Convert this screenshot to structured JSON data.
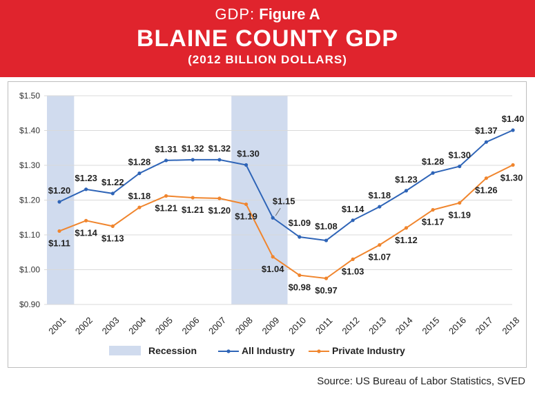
{
  "header": {
    "prefix": "GDP:",
    "figure": "Figure A",
    "title": "BLAINE COUNTY GDP",
    "subtitle": "(2012 BILLION DOLLARS)"
  },
  "source": "Source: US Bureau of Labor Statistics, SVED",
  "chart_data": {
    "type": "line",
    "title": "BLAINE COUNTY GDP",
    "subtitle": "(2012 BILLION DOLLARS)",
    "xlabel": "",
    "ylabel": "",
    "x": [
      "2001",
      "2002",
      "2003",
      "2004",
      "2005",
      "2006",
      "2007",
      "2008",
      "2009",
      "2010",
      "2011",
      "2012",
      "2013",
      "2014",
      "2015",
      "2016",
      "2017",
      "2018"
    ],
    "ylim": [
      0.9,
      1.5
    ],
    "yticks": [
      0.9,
      1.0,
      1.1,
      1.2,
      1.3,
      1.4,
      1.5
    ],
    "ytick_labels": [
      "$0.90",
      "$1.00",
      "$1.10",
      "$1.20",
      "$1.30",
      "$1.40",
      "$1.50"
    ],
    "grid": true,
    "legend_position": "bottom",
    "shaded_regions": [
      {
        "name": "Recession",
        "start": "2001",
        "end": "2001",
        "color": "#d0dbee"
      },
      {
        "name": "Recession",
        "start": "2008",
        "end": "2009",
        "color": "#d0dbee"
      }
    ],
    "legend": [
      "Recession",
      "All Industry",
      "Private Industry"
    ],
    "series": [
      {
        "name": "All Industry",
        "color": "#2e64b7",
        "values": [
          1.195,
          1.231,
          1.219,
          1.277,
          1.314,
          1.316,
          1.316,
          1.301,
          1.149,
          1.094,
          1.084,
          1.142,
          1.181,
          1.227,
          1.278,
          1.297,
          1.367,
          1.401
        ],
        "labels": [
          "$1.20",
          "$1.23",
          "$1.22",
          "$1.28",
          "$1.31",
          "$1.32",
          "$1.32",
          "$1.30",
          "$1.15",
          "$1.09",
          "$1.08",
          "$1.14",
          "$1.18",
          "$1.23",
          "$1.28",
          "$1.30",
          "$1.37",
          "$1.40"
        ]
      },
      {
        "name": "Private Industry",
        "color": "#f0852d",
        "values": [
          1.111,
          1.141,
          1.125,
          1.179,
          1.212,
          1.207,
          1.205,
          1.188,
          1.037,
          0.984,
          0.975,
          1.03,
          1.071,
          1.12,
          1.172,
          1.192,
          1.263,
          1.301
        ],
        "labels": [
          "$1.11",
          "$1.14",
          "$1.13",
          "$1.18",
          "$1.21",
          "$1.21",
          "$1.20",
          "$1.19",
          "$1.04",
          "$0.98",
          "$0.97",
          "$1.03",
          "$1.07",
          "$1.12",
          "$1.17",
          "$1.19",
          "$1.26",
          "$1.30"
        ]
      }
    ]
  }
}
